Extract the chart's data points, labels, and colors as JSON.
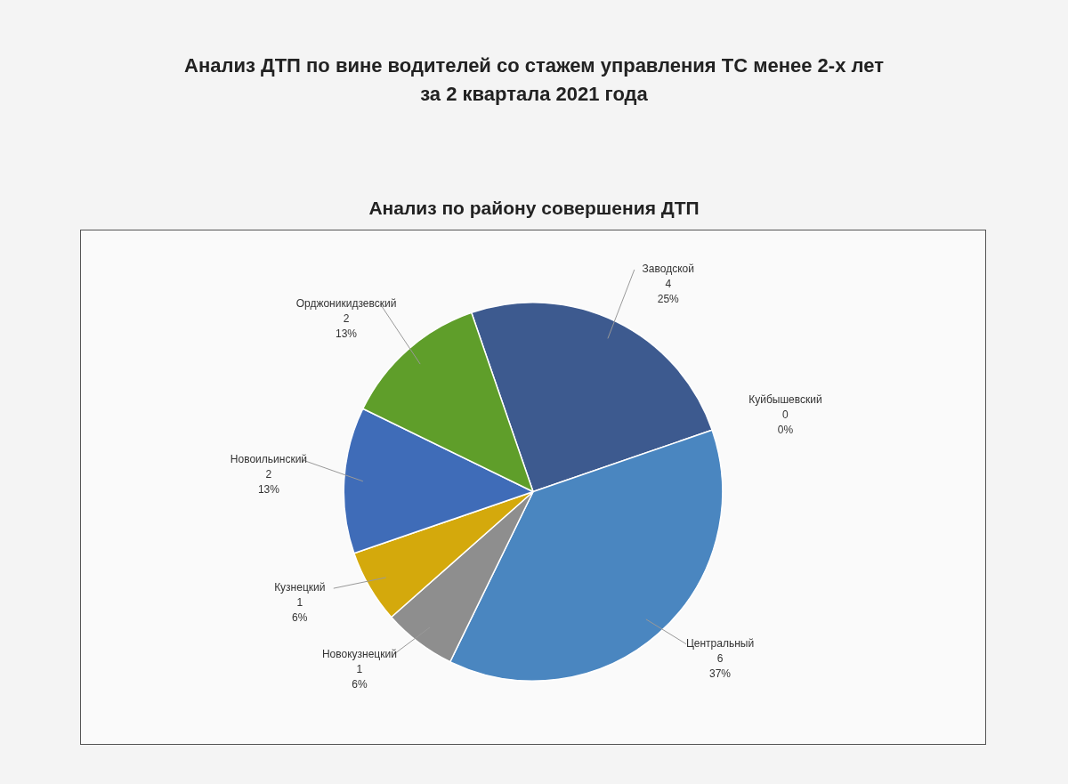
{
  "chart_data": {
    "type": "pie",
    "title": "Анализ ДТП по вине водителей со стажем управления ТС менее 2-х лет\nза 2 квартала 2021 года",
    "subtitle": "Анализ по району совершения ДТП",
    "categories": [
      "Заводской",
      "Куйбышевский",
      "Центральный",
      "Новокузнецкий",
      "Кузнецкий",
      "Новоильинский",
      "Орджоникидзевский"
    ],
    "values": [
      4,
      0,
      6,
      1,
      1,
      2,
      2
    ],
    "value_labels": [
      "4\n25%",
      "0\n0%",
      "6\n37%",
      "1\n6%",
      "1\n6%",
      "2\n13%",
      "2\n13%"
    ],
    "colors": [
      "#3d5a8f",
      "#ed7d31",
      "#4a86c0",
      "#8e8e8e",
      "#d4a90c",
      "#3f6cb8",
      "#5f9e2a"
    ],
    "legend": false
  }
}
